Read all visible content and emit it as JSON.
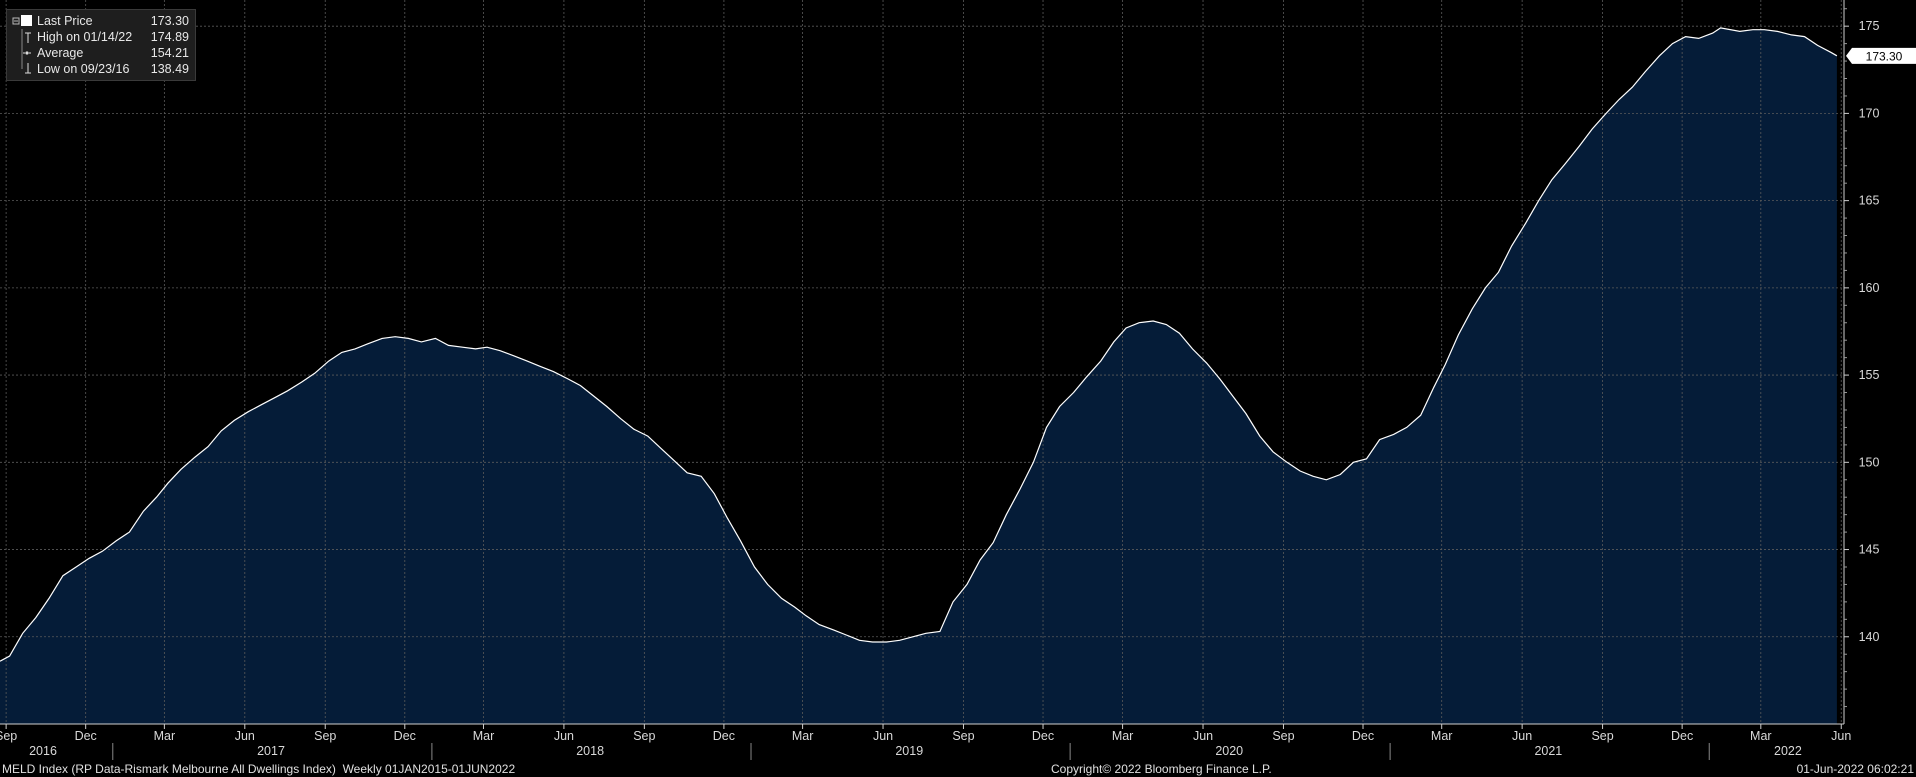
{
  "legend": {
    "last_label": "Last Price",
    "last_value": "173.30",
    "high_label": "High on 01/14/22",
    "high_value": "174.89",
    "avg_label": "Average",
    "avg_value": "154.21",
    "low_label": "Low on 09/23/16",
    "low_value": "138.49"
  },
  "footer": {
    "left": "MELD Index (RP Data-Rismark Melbourne All Dwellings Index)  Weekly 01JAN2015-01JUN2022",
    "center": "Copyright© 2022 Bloomberg Finance L.P.",
    "right": "01-Jun-2022 06:02:21"
  },
  "colors": {
    "fill": "#051c38",
    "line": "#ffffff",
    "grid": "#5a5a5a",
    "background": "#000000"
  },
  "chart_data": {
    "type": "area",
    "ylim": [
      135,
      176.5
    ],
    "y_ticks": [
      140,
      145,
      150,
      155,
      160,
      165,
      170,
      175
    ],
    "last_price_tag": "173.30",
    "x_ticks": [
      {
        "date": "2016-09-01",
        "label": "Sep"
      },
      {
        "date": "2016-12-01",
        "label": "Dec"
      },
      {
        "date": "2017-03-01",
        "label": "Mar"
      },
      {
        "date": "2017-06-01",
        "label": "Jun"
      },
      {
        "date": "2017-09-01",
        "label": "Sep"
      },
      {
        "date": "2017-12-01",
        "label": "Dec"
      },
      {
        "date": "2018-03-01",
        "label": "Mar"
      },
      {
        "date": "2018-06-01",
        "label": "Jun"
      },
      {
        "date": "2018-09-01",
        "label": "Sep"
      },
      {
        "date": "2018-12-01",
        "label": "Dec"
      },
      {
        "date": "2019-03-01",
        "label": "Mar"
      },
      {
        "date": "2019-06-01",
        "label": "Jun"
      },
      {
        "date": "2019-09-01",
        "label": "Sep"
      },
      {
        "date": "2019-12-01",
        "label": "Dec"
      },
      {
        "date": "2020-03-01",
        "label": "Mar"
      },
      {
        "date": "2020-06-01",
        "label": "Jun"
      },
      {
        "date": "2020-09-01",
        "label": "Sep"
      },
      {
        "date": "2020-12-01",
        "label": "Dec"
      },
      {
        "date": "2021-03-01",
        "label": "Mar"
      },
      {
        "date": "2021-06-01",
        "label": "Jun"
      },
      {
        "date": "2021-09-01",
        "label": "Sep"
      },
      {
        "date": "2021-12-01",
        "label": "Dec"
      },
      {
        "date": "2022-03-01",
        "label": "Mar"
      },
      {
        "date": "2022-06-01",
        "label": "Jun"
      }
    ],
    "year_labels": [
      {
        "date": "2017-01-01",
        "label": "2016"
      },
      {
        "date": "2017-07-01",
        "label": "2017"
      },
      {
        "date": "2018-07-01",
        "label": "2018"
      },
      {
        "date": "2019-07-01",
        "label": "2019"
      },
      {
        "date": "2020-07-01",
        "label": "2020"
      },
      {
        "date": "2021-07-01",
        "label": "2021"
      },
      {
        "date": "2022-04-01",
        "label": "2022"
      }
    ],
    "year_separators": [
      "2017-01-01",
      "2018-01-01",
      "2019-01-01",
      "2020-01-01",
      "2021-01-01",
      "2022-01-01"
    ],
    "series": [
      {
        "points": [
          [
            "2016-08-25",
            138.6
          ],
          [
            "2016-09-05",
            138.9
          ],
          [
            "2016-09-20",
            140.2
          ],
          [
            "2016-10-05",
            141.1
          ],
          [
            "2016-10-20",
            142.2
          ],
          [
            "2016-11-05",
            143.5
          ],
          [
            "2016-11-20",
            144.0
          ],
          [
            "2016-12-05",
            144.5
          ],
          [
            "2016-12-20",
            144.9
          ],
          [
            "2017-01-05",
            145.5
          ],
          [
            "2017-01-20",
            146.0
          ],
          [
            "2017-02-05",
            147.2
          ],
          [
            "2017-02-20",
            148.0
          ],
          [
            "2017-03-05",
            148.8
          ],
          [
            "2017-03-20",
            149.6
          ],
          [
            "2017-04-05",
            150.3
          ],
          [
            "2017-04-20",
            150.9
          ],
          [
            "2017-05-05",
            151.8
          ],
          [
            "2017-05-20",
            152.4
          ],
          [
            "2017-06-05",
            152.9
          ],
          [
            "2017-06-20",
            153.3
          ],
          [
            "2017-07-05",
            153.7
          ],
          [
            "2017-07-20",
            154.1
          ],
          [
            "2017-08-05",
            154.6
          ],
          [
            "2017-08-20",
            155.1
          ],
          [
            "2017-09-05",
            155.8
          ],
          [
            "2017-09-20",
            156.3
          ],
          [
            "2017-10-05",
            156.5
          ],
          [
            "2017-10-20",
            156.8
          ],
          [
            "2017-11-05",
            157.1
          ],
          [
            "2017-11-20",
            157.2
          ],
          [
            "2017-12-05",
            157.1
          ],
          [
            "2017-12-20",
            156.9
          ],
          [
            "2018-01-05",
            157.1
          ],
          [
            "2018-01-20",
            156.7
          ],
          [
            "2018-02-05",
            156.6
          ],
          [
            "2018-02-20",
            156.5
          ],
          [
            "2018-03-05",
            156.6
          ],
          [
            "2018-03-20",
            156.4
          ],
          [
            "2018-04-05",
            156.1
          ],
          [
            "2018-04-20",
            155.8
          ],
          [
            "2018-05-05",
            155.5
          ],
          [
            "2018-05-20",
            155.2
          ],
          [
            "2018-06-05",
            154.8
          ],
          [
            "2018-06-20",
            154.4
          ],
          [
            "2018-07-05",
            153.8
          ],
          [
            "2018-07-20",
            153.2
          ],
          [
            "2018-08-05",
            152.5
          ],
          [
            "2018-08-20",
            151.9
          ],
          [
            "2018-09-05",
            151.5
          ],
          [
            "2018-09-20",
            150.8
          ],
          [
            "2018-10-05",
            150.1
          ],
          [
            "2018-10-20",
            149.4
          ],
          [
            "2018-11-05",
            149.2
          ],
          [
            "2018-11-20",
            148.2
          ],
          [
            "2018-12-05",
            146.8
          ],
          [
            "2018-12-20",
            145.5
          ],
          [
            "2019-01-05",
            144.0
          ],
          [
            "2019-01-20",
            143.0
          ],
          [
            "2019-02-05",
            142.2
          ],
          [
            "2019-02-20",
            141.7
          ],
          [
            "2019-03-05",
            141.2
          ],
          [
            "2019-03-20",
            140.7
          ],
          [
            "2019-04-05",
            140.4
          ],
          [
            "2019-04-20",
            140.1
          ],
          [
            "2019-05-05",
            139.8
          ],
          [
            "2019-05-20",
            139.7
          ],
          [
            "2019-06-05",
            139.7
          ],
          [
            "2019-06-20",
            139.8
          ],
          [
            "2019-07-05",
            140.0
          ],
          [
            "2019-07-20",
            140.2
          ],
          [
            "2019-08-05",
            140.3
          ],
          [
            "2019-08-20",
            142.0
          ],
          [
            "2019-09-05",
            143.0
          ],
          [
            "2019-09-20",
            144.4
          ],
          [
            "2019-10-05",
            145.4
          ],
          [
            "2019-10-20",
            147.0
          ],
          [
            "2019-11-05",
            148.5
          ],
          [
            "2019-11-20",
            150.0
          ],
          [
            "2019-12-05",
            152.0
          ],
          [
            "2019-12-20",
            153.2
          ],
          [
            "2020-01-05",
            154.0
          ],
          [
            "2020-01-20",
            154.9
          ],
          [
            "2020-02-05",
            155.8
          ],
          [
            "2020-02-20",
            156.9
          ],
          [
            "2020-03-05",
            157.7
          ],
          [
            "2020-03-20",
            158.0
          ],
          [
            "2020-04-05",
            158.1
          ],
          [
            "2020-04-20",
            157.9
          ],
          [
            "2020-05-05",
            157.4
          ],
          [
            "2020-05-20",
            156.5
          ],
          [
            "2020-06-05",
            155.7
          ],
          [
            "2020-06-20",
            154.8
          ],
          [
            "2020-07-05",
            153.8
          ],
          [
            "2020-07-20",
            152.8
          ],
          [
            "2020-08-05",
            151.5
          ],
          [
            "2020-08-20",
            150.6
          ],
          [
            "2020-09-05",
            150.0
          ],
          [
            "2020-09-20",
            149.5
          ],
          [
            "2020-10-05",
            149.2
          ],
          [
            "2020-10-20",
            149.0
          ],
          [
            "2020-11-05",
            149.3
          ],
          [
            "2020-11-20",
            150.0
          ],
          [
            "2020-12-05",
            150.2
          ],
          [
            "2020-12-20",
            151.3
          ],
          [
            "2021-01-05",
            151.6
          ],
          [
            "2021-01-20",
            152.0
          ],
          [
            "2021-02-05",
            152.7
          ],
          [
            "2021-02-20",
            154.3
          ],
          [
            "2021-03-05",
            155.6
          ],
          [
            "2021-03-20",
            157.3
          ],
          [
            "2021-04-05",
            158.8
          ],
          [
            "2021-04-20",
            160.0
          ],
          [
            "2021-05-05",
            160.9
          ],
          [
            "2021-05-20",
            162.4
          ],
          [
            "2021-06-05",
            163.7
          ],
          [
            "2021-06-20",
            165.0
          ],
          [
            "2021-07-05",
            166.2
          ],
          [
            "2021-07-20",
            167.1
          ],
          [
            "2021-08-05",
            168.1
          ],
          [
            "2021-08-20",
            169.1
          ],
          [
            "2021-09-05",
            170.0
          ],
          [
            "2021-09-20",
            170.8
          ],
          [
            "2021-10-05",
            171.5
          ],
          [
            "2021-10-20",
            172.4
          ],
          [
            "2021-11-05",
            173.3
          ],
          [
            "2021-11-20",
            174.0
          ],
          [
            "2021-12-05",
            174.4
          ],
          [
            "2021-12-20",
            174.3
          ],
          [
            "2022-01-05",
            174.6
          ],
          [
            "2022-01-14",
            174.9
          ],
          [
            "2022-02-05",
            174.7
          ],
          [
            "2022-02-20",
            174.8
          ],
          [
            "2022-03-05",
            174.8
          ],
          [
            "2022-03-20",
            174.7
          ],
          [
            "2022-04-05",
            174.5
          ],
          [
            "2022-04-20",
            174.4
          ],
          [
            "2022-05-05",
            173.9
          ],
          [
            "2022-05-20",
            173.5
          ],
          [
            "2022-05-27",
            173.3
          ]
        ]
      }
    ]
  }
}
